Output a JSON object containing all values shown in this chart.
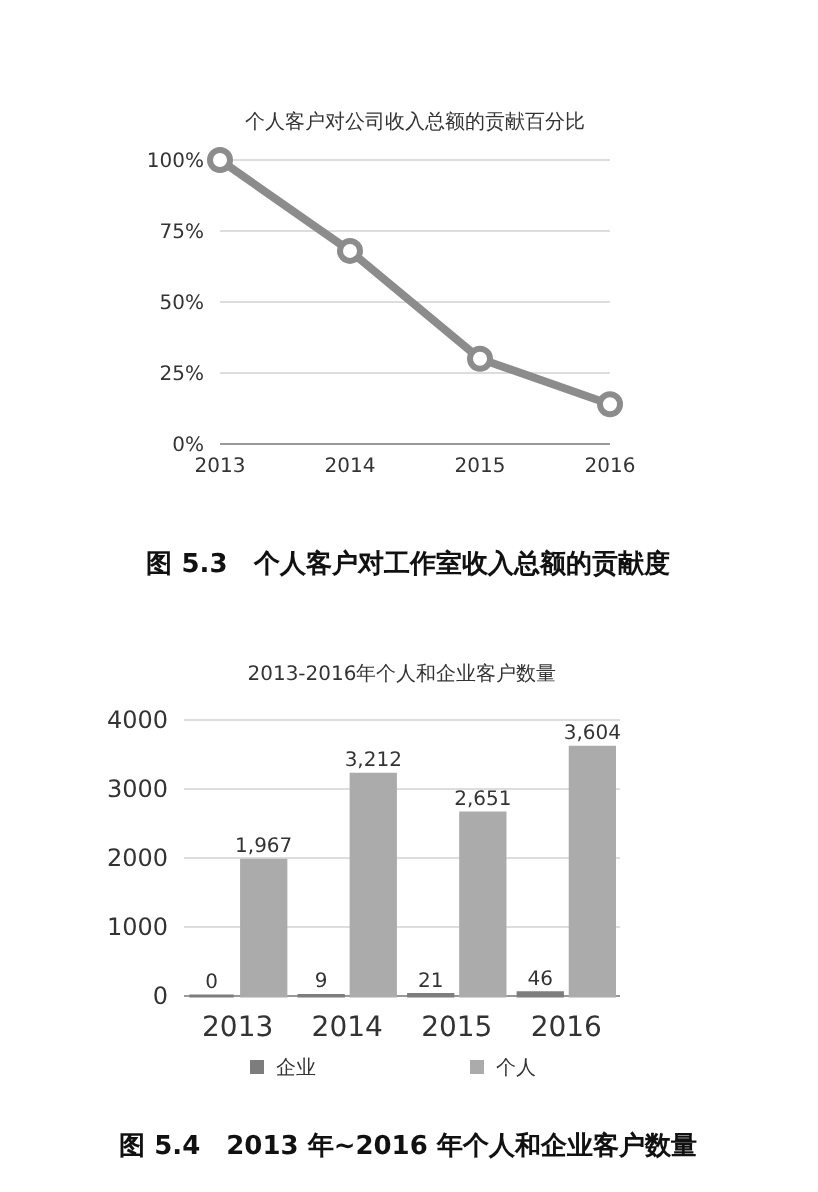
{
  "chart_data": [
    {
      "type": "line",
      "title": "个人客户对公司收入总额的贡献百分比",
      "categories": [
        "2013",
        "2014",
        "2015",
        "2016"
      ],
      "series": [
        {
          "color": "#8c8c8c",
          "values": [
            100,
            68,
            30,
            14
          ]
        }
      ],
      "ylim": [
        0,
        100
      ],
      "yticks": [
        {
          "value": 0,
          "label": "0%"
        },
        {
          "value": 25,
          "label": "25%"
        },
        {
          "value": 50,
          "label": "50%"
        },
        {
          "value": 75,
          "label": "75%"
        },
        {
          "value": 100,
          "label": "100%"
        }
      ],
      "grid": "y",
      "marker": "circle",
      "line_style": "solid",
      "annotations": [
        "图 5.3　个人客户对工作室收入总额的贡献度"
      ]
    },
    {
      "type": "bar",
      "title": "2013-2016年个人和企业客户数量",
      "categories": [
        "2013",
        "2014",
        "2015",
        "2016"
      ],
      "series": [
        {
          "name": "企业",
          "color": "#7d7d7d",
          "values": [
            0,
            9,
            21,
            46
          ],
          "value_labels": [
            "0",
            "9",
            "21",
            "46"
          ]
        },
        {
          "name": "个人",
          "color": "#ababab",
          "values": [
            1967,
            3212,
            2651,
            3604
          ],
          "value_labels": [
            "1,967",
            "3,212",
            "2,651",
            "3,604"
          ]
        }
      ],
      "ylim": [
        0,
        4000
      ],
      "yticks": [
        0,
        1000,
        2000,
        3000,
        4000
      ],
      "grid": "y",
      "legend": "bottom",
      "annotations": [
        "图 5.4　2013 年~2016 年个人和企业客户数量"
      ]
    }
  ]
}
